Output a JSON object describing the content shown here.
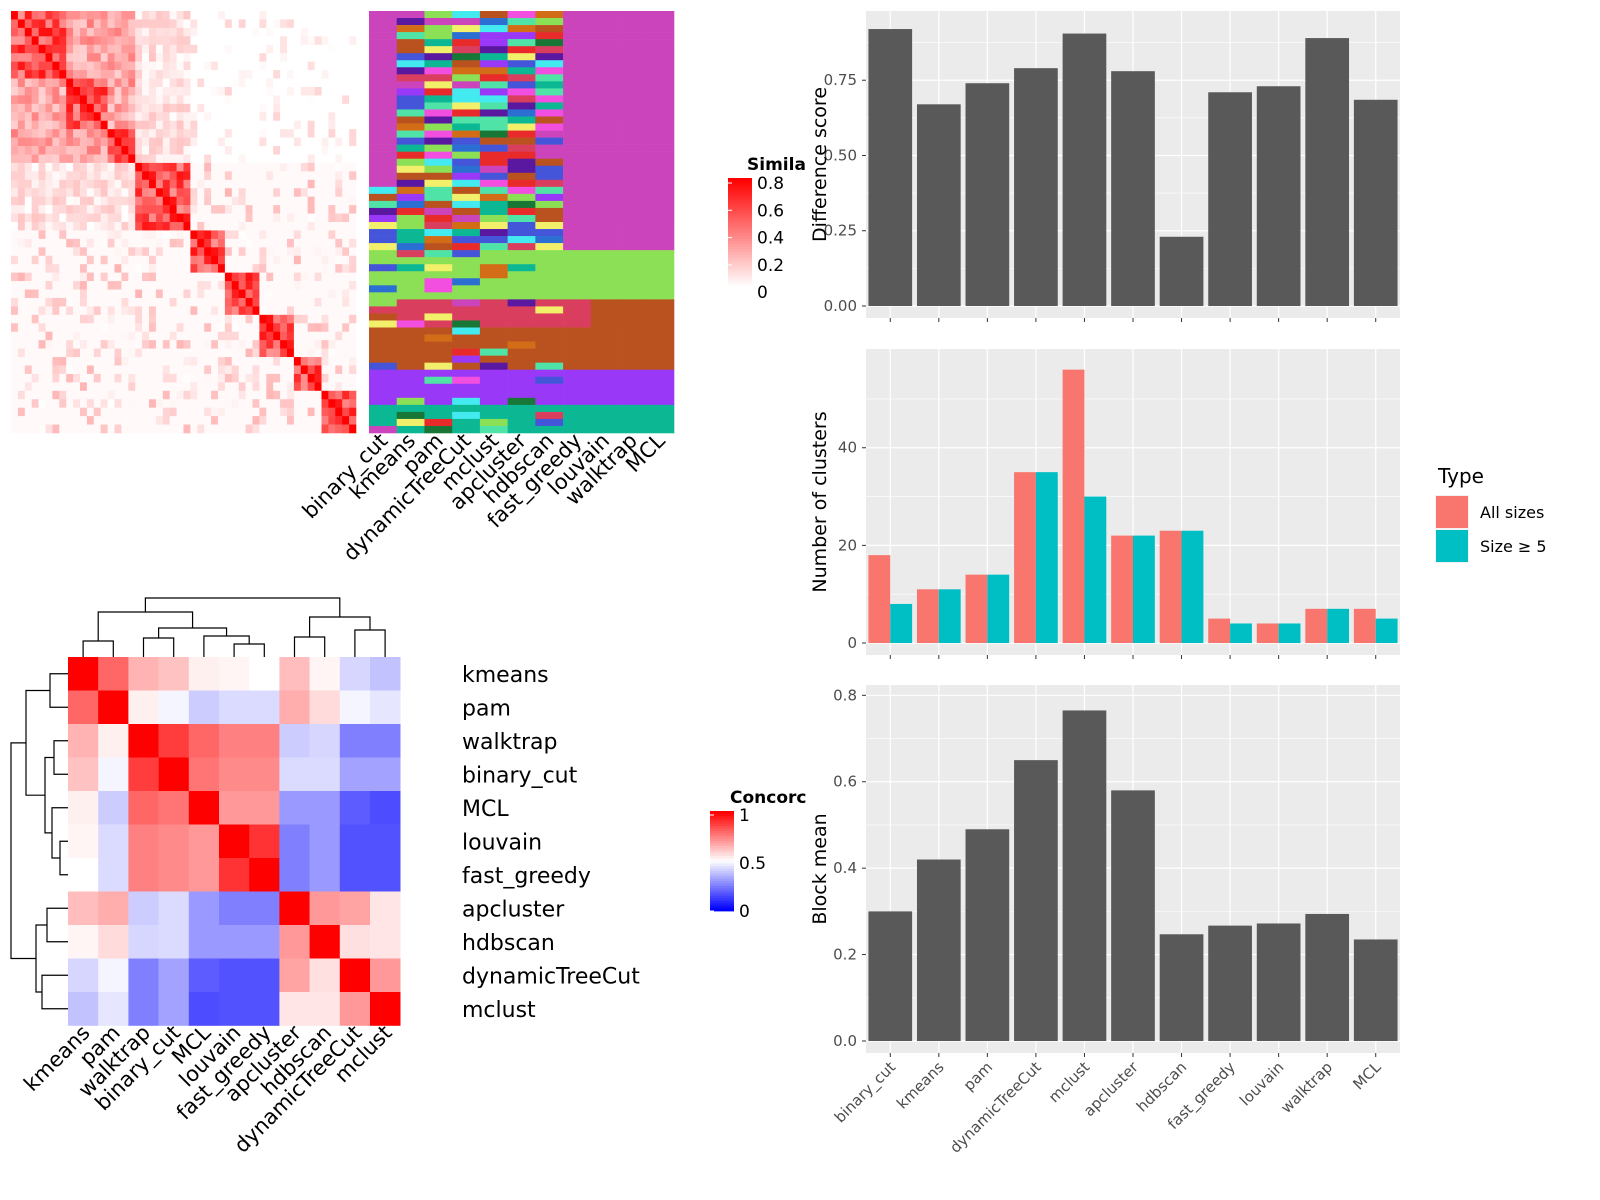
{
  "methods": [
    "binary_cut",
    "kmeans",
    "pam",
    "dynamicTreeCut",
    "mclust",
    "apcluster",
    "hdbscan",
    "fast_greedy",
    "louvain",
    "walktrap",
    "MCL"
  ],
  "colors": {
    "panel_bg": "#EBEBEB",
    "grid": "#FFFFFF",
    "bar_dark": "#595959",
    "all_sizes": "#F8766D",
    "size_ge5": "#00BFC4",
    "sim_high": "#FF0000",
    "sim_low": "#FFFFFF",
    "conc_high": "#FF0000",
    "conc_mid": "#FFFFFF",
    "conc_low": "#0000FF",
    "cluster_palette": [
      "#CC44BB",
      "#8CE056",
      "#DA3E5E",
      "#B9521F",
      "#9A38F8",
      "#0CB894",
      "#43EAF0",
      "#5A17A0",
      "#F24FE0",
      "#4455D9",
      "#F2F06A",
      "#187636",
      "#D36C17",
      "#E92A2A",
      "#4FE3A8",
      "#2B6FD3"
    ]
  },
  "similarity_legend": {
    "title": "Simila",
    "ticks": [
      "0.8",
      "0.6",
      "0.4",
      "0.2",
      "0"
    ]
  },
  "concordance_legend": {
    "title": "Concorc",
    "ticks": [
      "1",
      "0.5",
      "0"
    ]
  },
  "partition_labels": [
    "binary_cut",
    "kmeans",
    "pam",
    "dynamicTreeCut",
    "mclust",
    "apcluster",
    "hdbscan",
    "fast_greedy",
    "louvain",
    "walktrap",
    "MCL"
  ],
  "concordance_order": [
    "kmeans",
    "pam",
    "walktrap",
    "binary_cut",
    "MCL",
    "louvain",
    "fast_greedy",
    "apcluster",
    "hdbscan",
    "dynamicTreeCut",
    "mclust"
  ],
  "concordance_matrix": [
    [
      1.0,
      0.8,
      0.65,
      0.62,
      0.53,
      0.52,
      0.5,
      0.63,
      0.52,
      0.42,
      0.38
    ],
    [
      0.8,
      1.0,
      0.53,
      0.48,
      0.4,
      0.43,
      0.43,
      0.66,
      0.57,
      0.48,
      0.45
    ],
    [
      0.65,
      0.53,
      1.0,
      0.88,
      0.8,
      0.75,
      0.75,
      0.4,
      0.42,
      0.25,
      0.25
    ],
    [
      0.62,
      0.48,
      0.88,
      1.0,
      0.77,
      0.73,
      0.73,
      0.43,
      0.43,
      0.32,
      0.32
    ],
    [
      0.53,
      0.4,
      0.8,
      0.77,
      1.0,
      0.7,
      0.7,
      0.3,
      0.3,
      0.18,
      0.15
    ],
    [
      0.52,
      0.43,
      0.75,
      0.73,
      0.7,
      1.0,
      0.9,
      0.25,
      0.3,
      0.16,
      0.16
    ],
    [
      0.5,
      0.43,
      0.75,
      0.73,
      0.7,
      0.9,
      1.0,
      0.25,
      0.3,
      0.16,
      0.16
    ],
    [
      0.63,
      0.66,
      0.4,
      0.43,
      0.3,
      0.25,
      0.25,
      1.0,
      0.7,
      0.68,
      0.55
    ],
    [
      0.52,
      0.57,
      0.42,
      0.43,
      0.3,
      0.3,
      0.3,
      0.7,
      1.0,
      0.56,
      0.55
    ],
    [
      0.42,
      0.48,
      0.25,
      0.32,
      0.18,
      0.16,
      0.16,
      0.68,
      0.56,
      1.0,
      0.7
    ],
    [
      0.38,
      0.45,
      0.25,
      0.32,
      0.15,
      0.16,
      0.16,
      0.55,
      0.55,
      0.7,
      1.0
    ]
  ],
  "chart_data": [
    {
      "type": "bar",
      "categories": [
        "binary_cut",
        "kmeans",
        "pam",
        "dynamicTreeCut",
        "mclust",
        "apcluster",
        "hdbscan",
        "fast_greedy",
        "louvain",
        "walktrap",
        "MCL"
      ],
      "values": [
        0.92,
        0.67,
        0.74,
        0.79,
        0.905,
        0.78,
        0.23,
        0.71,
        0.73,
        0.89,
        0.685
      ],
      "ylabel": "Difference score",
      "yticks": [
        "0.00",
        "0.25",
        "0.50",
        "0.75"
      ],
      "ylim": [
        0,
        0.96
      ]
    },
    {
      "type": "bar",
      "categories": [
        "binary_cut",
        "kmeans",
        "pam",
        "dynamicTreeCut",
        "mclust",
        "apcluster",
        "hdbscan",
        "fast_greedy",
        "louvain",
        "walktrap",
        "MCL"
      ],
      "series": [
        {
          "name": "All sizes",
          "values": [
            18,
            11,
            14,
            35,
            56,
            22,
            23,
            5,
            4,
            7,
            7
          ]
        },
        {
          "name": "Size ≥ 5",
          "values": [
            8,
            11,
            14,
            35,
            30,
            22,
            23,
            4,
            4,
            7,
            5
          ]
        }
      ],
      "ylabel": "Number of clusters",
      "yticks": [
        "0",
        "20",
        "40"
      ],
      "ylim": [
        0,
        59
      ],
      "legend_title": "Type"
    },
    {
      "type": "bar",
      "categories": [
        "binary_cut",
        "kmeans",
        "pam",
        "dynamicTreeCut",
        "mclust",
        "apcluster",
        "hdbscan",
        "fast_greedy",
        "louvain",
        "walktrap",
        "MCL"
      ],
      "values": [
        0.3,
        0.42,
        0.49,
        0.65,
        0.765,
        0.58,
        0.247,
        0.267,
        0.272,
        0.294,
        0.235
      ],
      "ylabel": "Block mean",
      "yticks": [
        "0.0",
        "0.2",
        "0.4",
        "0.6",
        "0.8"
      ],
      "ylim": [
        0,
        0.81
      ]
    }
  ]
}
